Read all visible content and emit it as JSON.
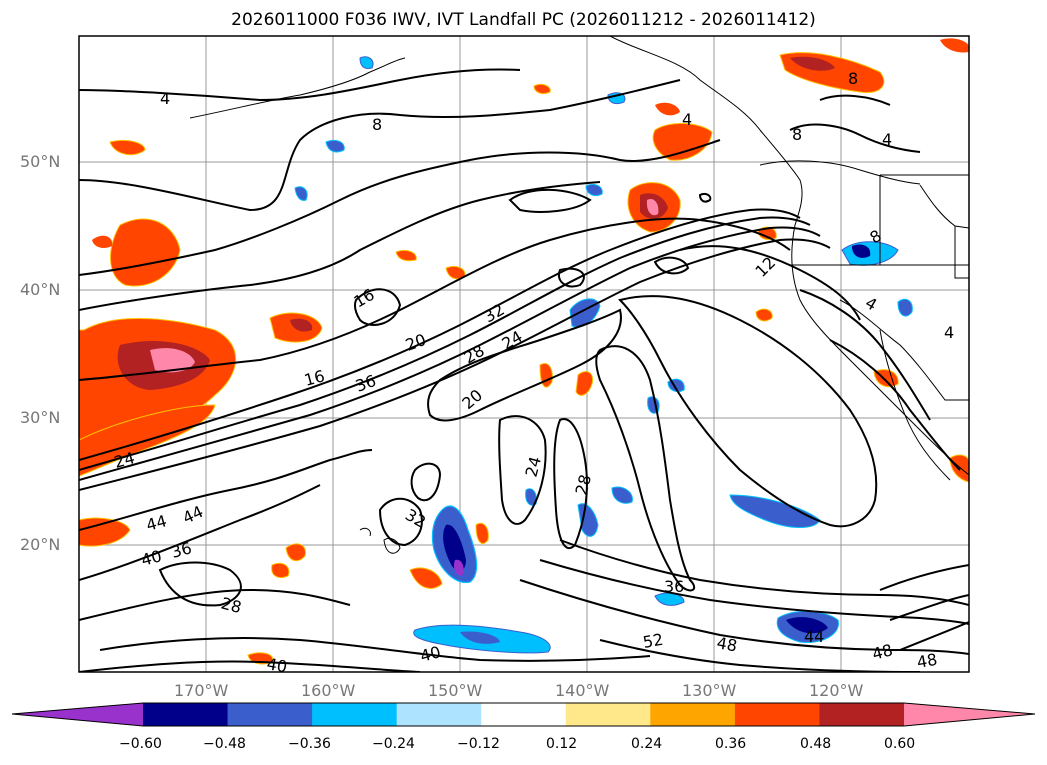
{
  "title": "2026011000 F036 IWV, IVT Landfall PC (2026011212 - 2026011412)",
  "lat_ticks": [
    "50°N",
    "40°N",
    "30°N",
    "20°N"
  ],
  "lon_ticks": [
    "170°W",
    "160°W",
    "150°W",
    "140°W",
    "130°W",
    "120°W"
  ],
  "contour_labels": [
    "4",
    "8",
    "8",
    "4",
    "8",
    "4",
    "12",
    "16",
    "16",
    "20",
    "20",
    "24",
    "24",
    "28",
    "32",
    "32",
    "36",
    "36",
    "40",
    "44",
    "44",
    "28",
    "24",
    "28",
    "36",
    "48",
    "52",
    "44",
    "48",
    "40",
    "40",
    "48",
    "8",
    "4",
    "4"
  ],
  "colorbar": {
    "ticks": [
      "−0.60",
      "−0.48",
      "−0.36",
      "−0.24",
      "−0.12",
      "0.12",
      "0.24",
      "0.36",
      "0.48",
      "0.60"
    ],
    "colors": [
      "#9932cc",
      "#00008b",
      "#3a5fcd",
      "#00bfff",
      "#aee3ff",
      "#ffffff",
      "#ffe88a",
      "#ffa500",
      "#ff4500",
      "#b22222",
      "#ff88aa"
    ]
  }
}
